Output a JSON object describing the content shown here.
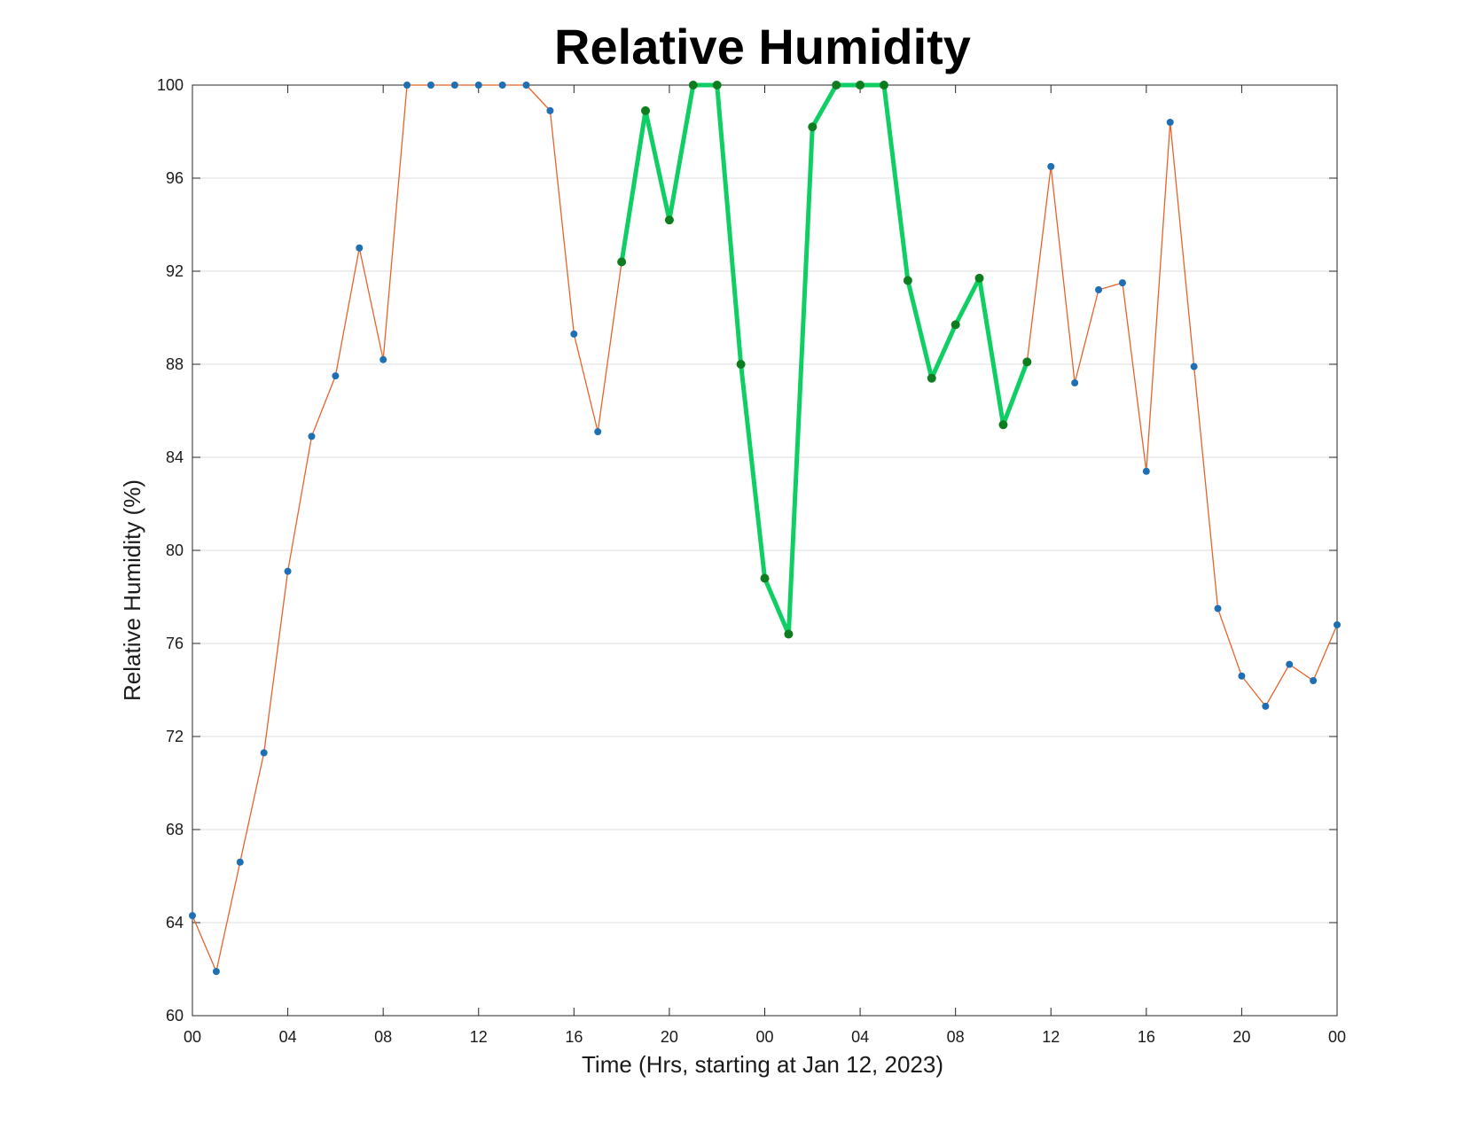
{
  "chart_data": {
    "type": "line",
    "title": "Relative Humidity",
    "xlabel": "Time (Hrs, starting at Jan 12, 2023)",
    "ylabel": "Relative Humidity (%)",
    "ylim": [
      60,
      100
    ],
    "xlim": [
      0,
      48
    ],
    "yticks": [
      60,
      64,
      68,
      72,
      76,
      80,
      84,
      88,
      92,
      96,
      100
    ],
    "xtick_labels": [
      "00",
      "04",
      "08",
      "12",
      "16",
      "20",
      "00",
      "04",
      "08",
      "12",
      "16",
      "20",
      "00"
    ],
    "grid": "horizontal",
    "x_hours": [
      0,
      1,
      2,
      3,
      4,
      5,
      6,
      7,
      8,
      9,
      10,
      11,
      12,
      13,
      14,
      15,
      16,
      17,
      18,
      19,
      20,
      21,
      22,
      23,
      24,
      25,
      26,
      27,
      28,
      29,
      30,
      31,
      32,
      33,
      34,
      35,
      36,
      37,
      38,
      39,
      40,
      41,
      42,
      43,
      44,
      45,
      46,
      47,
      48
    ],
    "series": [
      {
        "color": "#e8632b",
        "marker_color": "#1f6fb5",
        "values": [
          64.3,
          61.9,
          66.6,
          71.3,
          79.1,
          84.9,
          87.5,
          93.0,
          88.2,
          100,
          100,
          100,
          100,
          100,
          100,
          98.9,
          89.3,
          85.1,
          92.4,
          98.9,
          94.2,
          100,
          100,
          88.0,
          78.8,
          76.4,
          98.2,
          100,
          100,
          100,
          91.6,
          87.4,
          89.7,
          91.7,
          85.4,
          88.1,
          96.5,
          87.2,
          91.2,
          91.5,
          83.4,
          98.4,
          87.9,
          77.5,
          74.6,
          73.3,
          75.1,
          74.4,
          76.8
        ]
      },
      {
        "color": "#0fcf64",
        "marker_color": "#0d7d1f",
        "x_range": [
          18,
          35
        ],
        "values": [
          92.4,
          98.9,
          94.2,
          100,
          100,
          88.0,
          78.8,
          76.4,
          98.2,
          100,
          100,
          100,
          91.6,
          87.4,
          89.7,
          91.7,
          85.4,
          88.1
        ]
      }
    ]
  }
}
